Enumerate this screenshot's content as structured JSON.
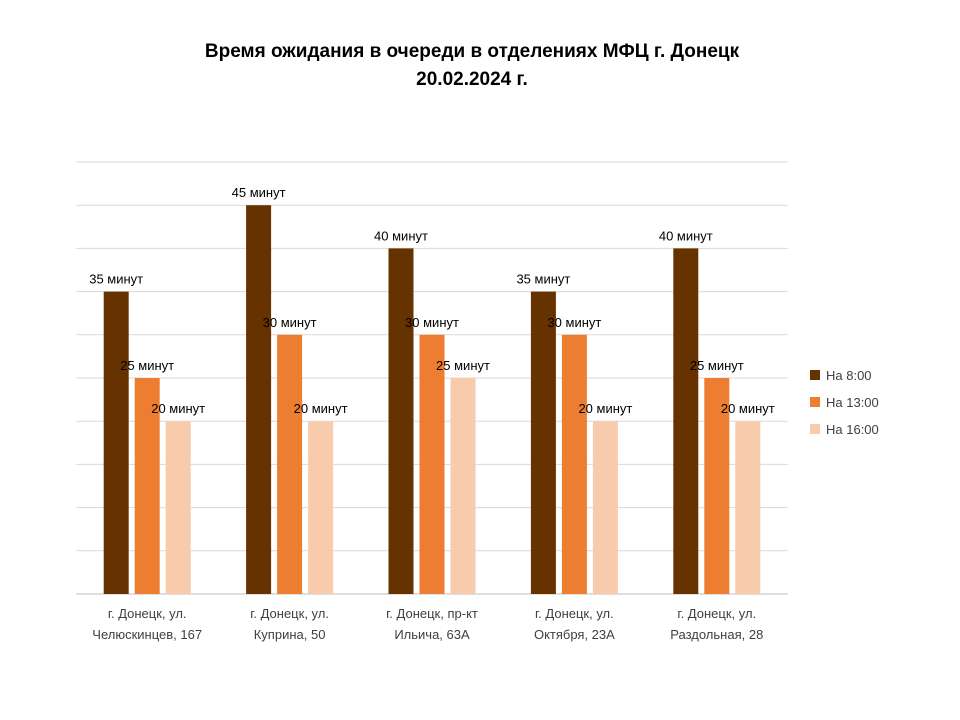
{
  "chart_data": {
    "type": "bar",
    "title": "Время ожидания в очереди в отделениях МФЦ г. Донецк",
    "subtitle": "20.02.2024 г.",
    "categories": [
      [
        "г. Донецк, ул.",
        "Челюскинцев, 167"
      ],
      [
        "г. Донецк, ул.",
        "Куприна, 50"
      ],
      [
        "г. Донецк, пр-кт",
        "Ильича, 63А"
      ],
      [
        "г. Донецк, ул.",
        "Октября, 23А"
      ],
      [
        "г. Донецк, ул.",
        "Раздольная, 28"
      ]
    ],
    "series": [
      {
        "name": "На 8:00",
        "color": "#663300",
        "values": [
          35,
          45,
          40,
          35,
          40
        ]
      },
      {
        "name": "На 13:00",
        "color": "#ED7D31",
        "values": [
          25,
          30,
          30,
          30,
          25
        ]
      },
      {
        "name": "На 16:00",
        "color": "#F8CBAD",
        "values": [
          20,
          20,
          25,
          20,
          20
        ]
      }
    ],
    "data_label_unit": "минут",
    "ylim": [
      0,
      50
    ],
    "grid": true,
    "legend_position": "right"
  }
}
